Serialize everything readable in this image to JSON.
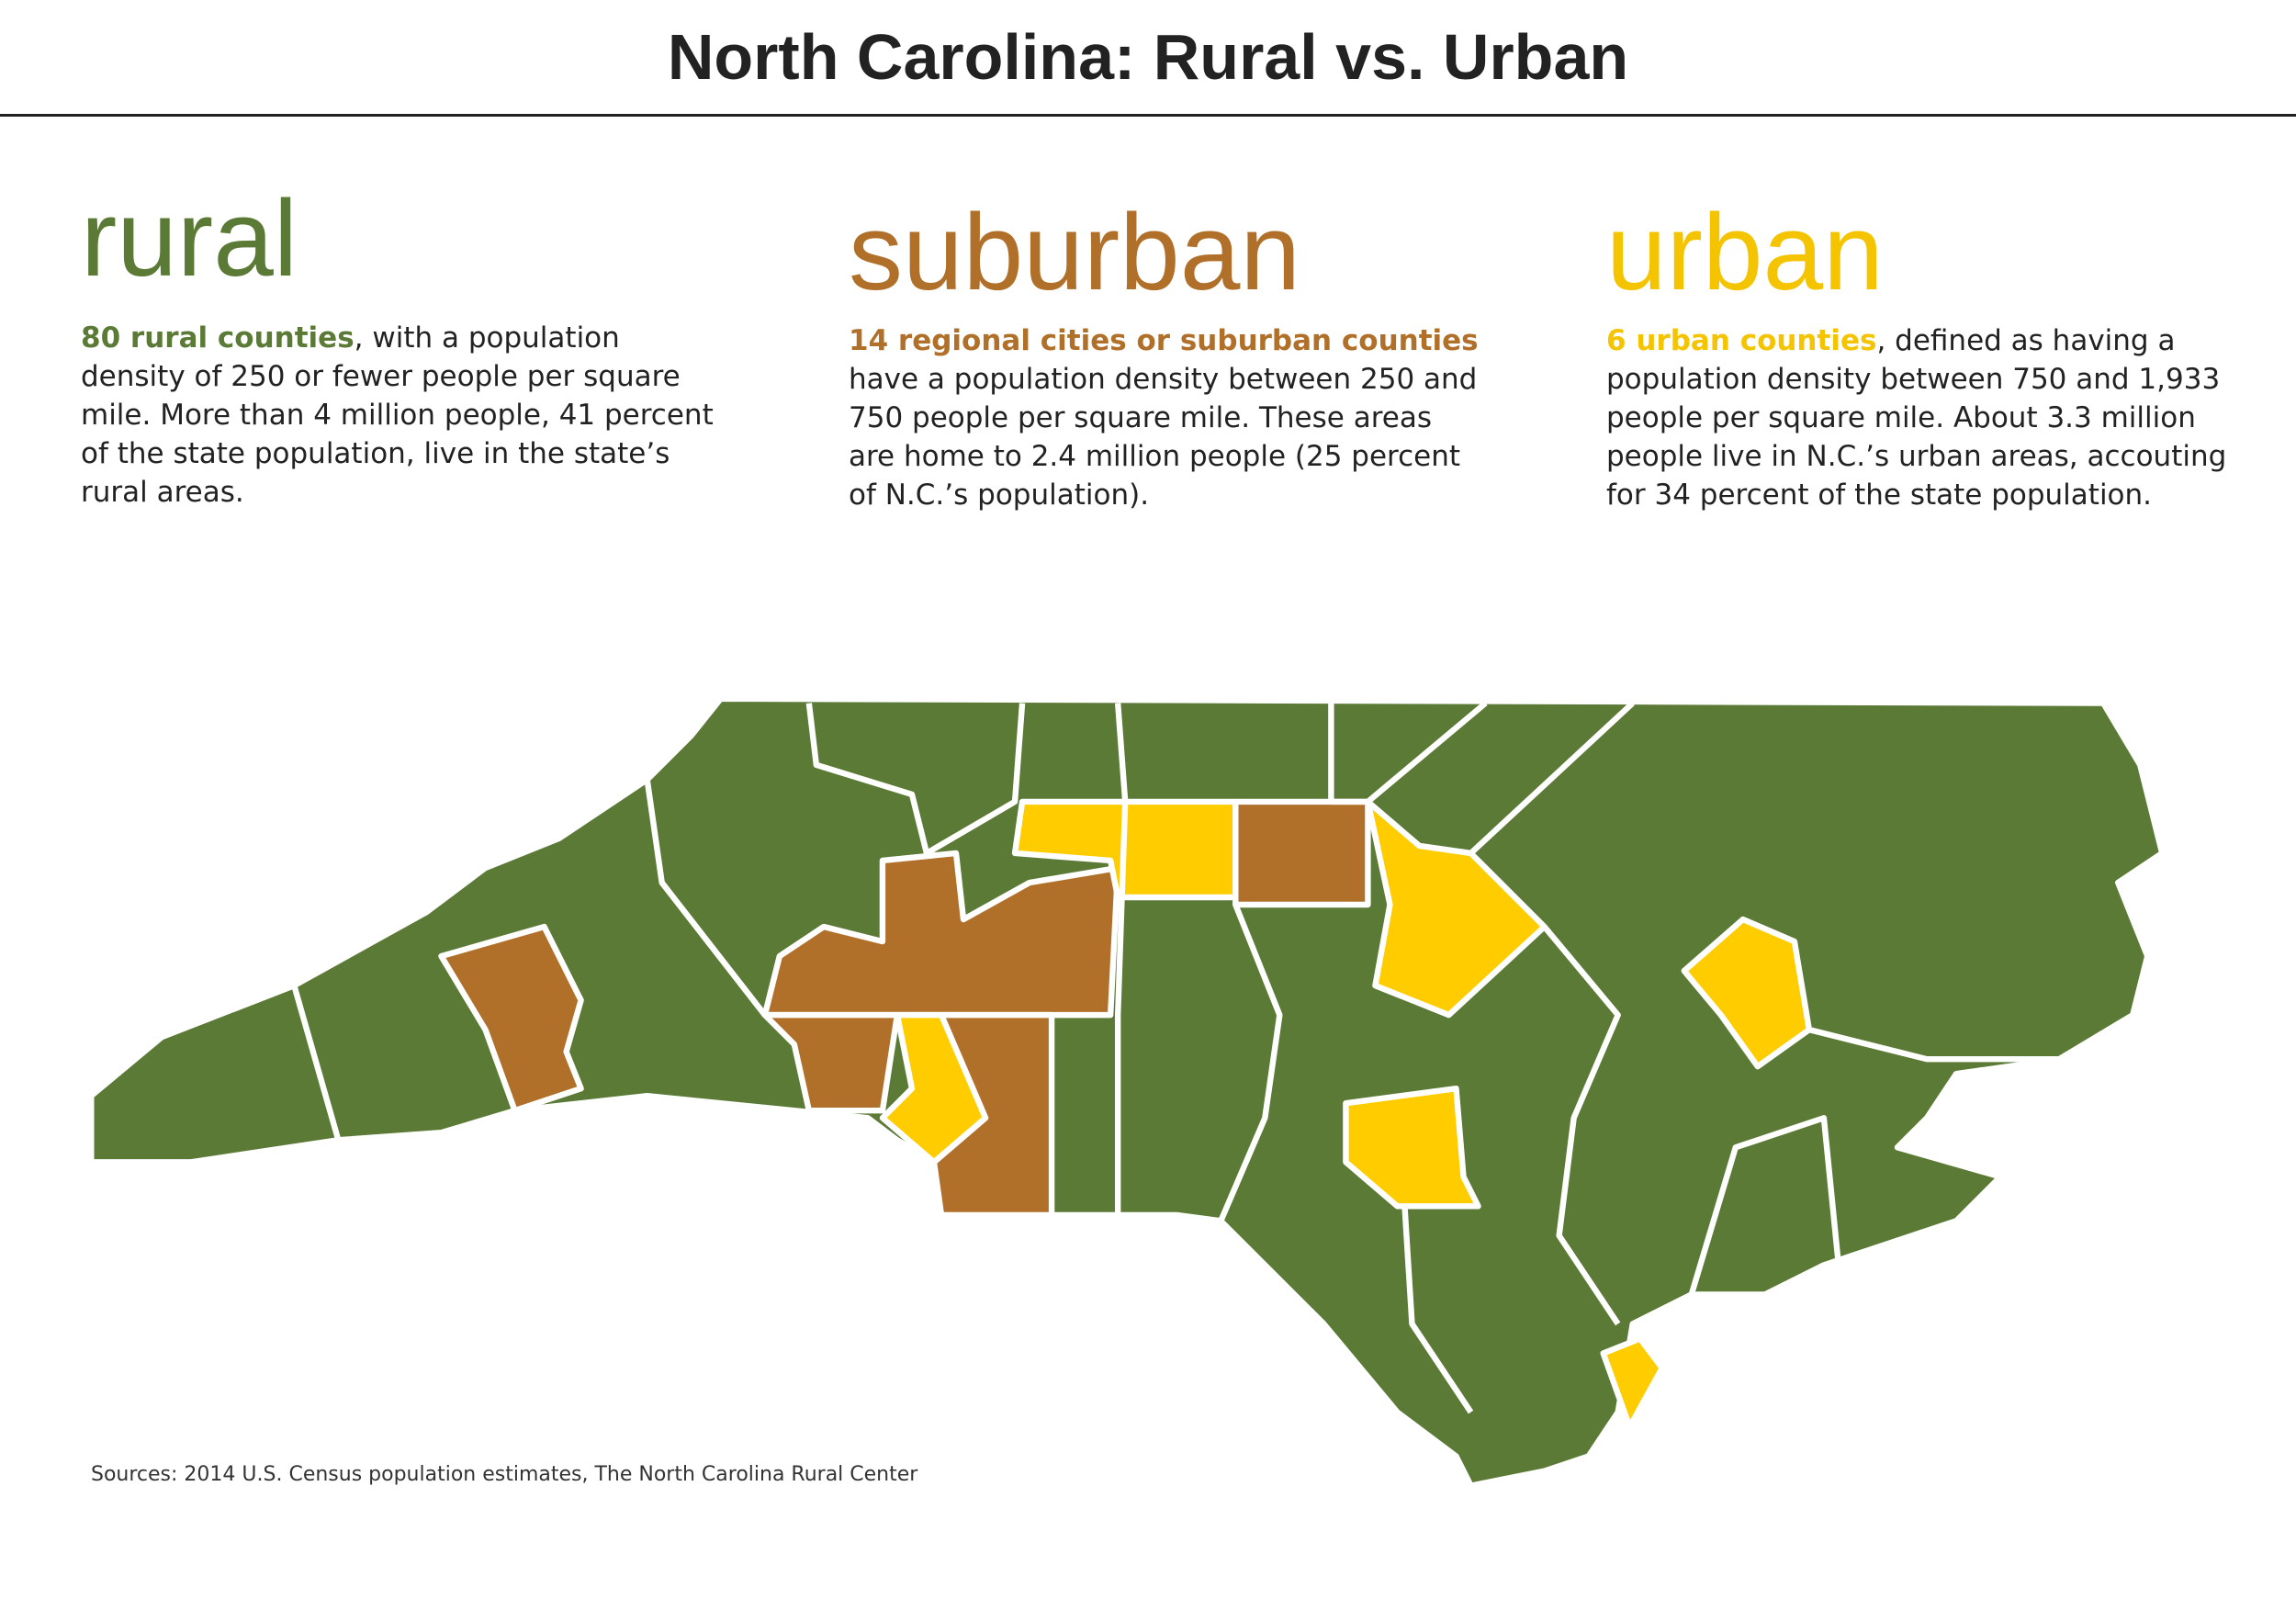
{
  "header": {
    "title": "North Carolina: Rural vs. Urban"
  },
  "sections": [
    {
      "heading": "rural",
      "lead": "80 rural counties",
      "body": ", with a population density of 250 or fewer people per square mile. More than 4 million people, 41 percent of the state population, live in the state’s rural areas."
    },
    {
      "heading": "suburban",
      "lead": "14 regional cities or suburban counties",
      "body": "have a population density between 250 and 750 people per square mile. These areas are home to 2.4 million people (25 percent of N.C.’s population)."
    },
    {
      "heading": "urban",
      "lead": "6 urban counties",
      "body": ", defined as having a population density between 750 and 1,933 people per square mile. About 3.3 million people live in N.C.’s urban areas, accouting for 34 percent of the state population."
    }
  ],
  "footer": {
    "sources": "Sources: 2014 U.S. Census population estimates, The North Carolina Rural Center"
  }
}
